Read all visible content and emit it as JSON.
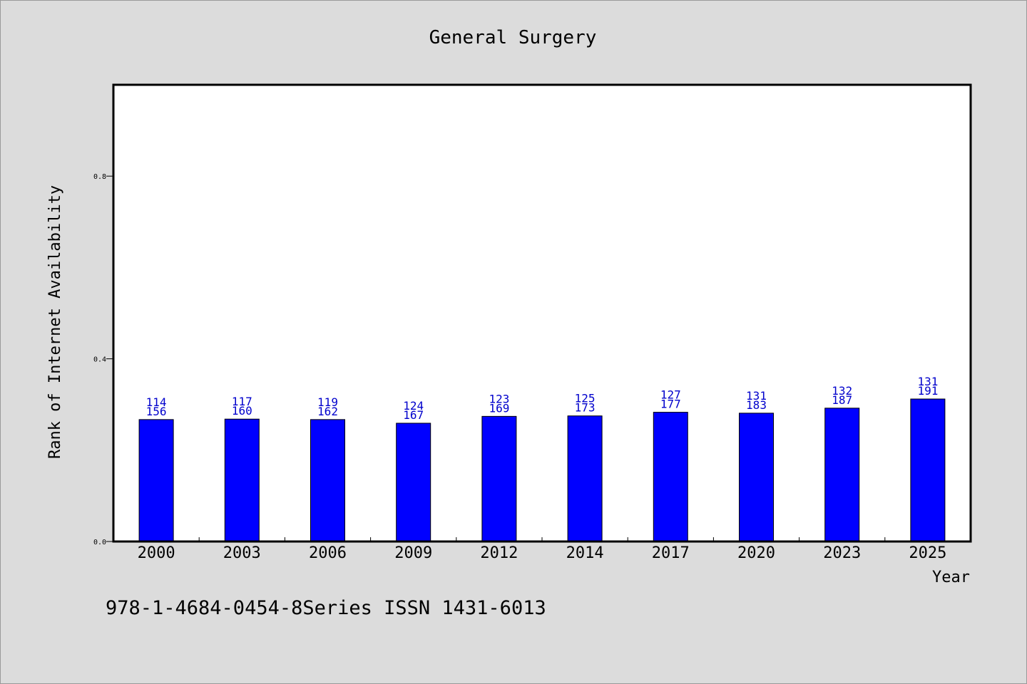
{
  "chart_data": {
    "type": "bar",
    "title": "General Surgery",
    "xlabel": "Year",
    "ylabel": "Rank of Internet Availability",
    "ylim": [
      0,
      1
    ],
    "yticks": [
      "0.0",
      "0.4",
      "0.8"
    ],
    "categories": [
      "2000",
      "2003",
      "2006",
      "2009",
      "2012",
      "2014",
      "2017",
      "2020",
      "2023",
      "2025"
    ],
    "values": [
      0.267,
      0.268,
      0.267,
      0.259,
      0.274,
      0.275,
      0.283,
      0.281,
      0.292,
      0.312
    ],
    "data_labels_top": [
      "114",
      "117",
      "119",
      "124",
      "123",
      "125",
      "127",
      "131",
      "132",
      "131"
    ],
    "data_labels_bottom": [
      "156",
      "160",
      "162",
      "167",
      "169",
      "173",
      "177",
      "183",
      "187",
      "191"
    ],
    "grid": false,
    "legend": "none",
    "colors": {
      "bar": "#0000ff",
      "label": "#0000cc",
      "background": "#dcdcdc",
      "plot_background": "#ffffff"
    }
  },
  "footer": {
    "text": "978-1-4684-0454-8Series ISSN 1431-6013"
  }
}
